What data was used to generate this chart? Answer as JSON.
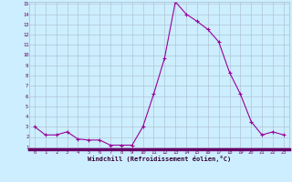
{
  "x": [
    0,
    1,
    2,
    3,
    4,
    5,
    6,
    7,
    8,
    9,
    10,
    11,
    12,
    13,
    14,
    15,
    16,
    17,
    18,
    19,
    20,
    21,
    22,
    23
  ],
  "y": [
    3.0,
    2.2,
    2.2,
    2.5,
    1.8,
    1.7,
    1.7,
    1.2,
    1.2,
    1.2,
    3.0,
    6.2,
    9.7,
    15.2,
    14.0,
    13.3,
    12.5,
    11.3,
    8.3,
    6.2,
    3.5,
    2.2,
    2.5,
    2.2
  ],
  "line_color": "#990099",
  "marker": "+",
  "marker_size": 3,
  "bg_color": "#cceeff",
  "grid_color": "#aabbcc",
  "xlabel": "Windchill (Refroidissement éolien,°C)",
  "xlabel_color": "#330033",
  "tick_color": "#660066",
  "ylim": [
    1,
    15
  ],
  "xlim": [
    -0.5,
    23.5
  ],
  "yticks": [
    1,
    2,
    3,
    4,
    5,
    6,
    7,
    8,
    9,
    10,
    11,
    12,
    13,
    14,
    15
  ],
  "xticks": [
    0,
    1,
    2,
    3,
    4,
    5,
    6,
    7,
    8,
    9,
    10,
    11,
    12,
    13,
    14,
    15,
    16,
    17,
    18,
    19,
    20,
    21,
    22,
    23
  ],
  "bottom_bar_color": "#660066",
  "spine_color": "#aabbcc"
}
